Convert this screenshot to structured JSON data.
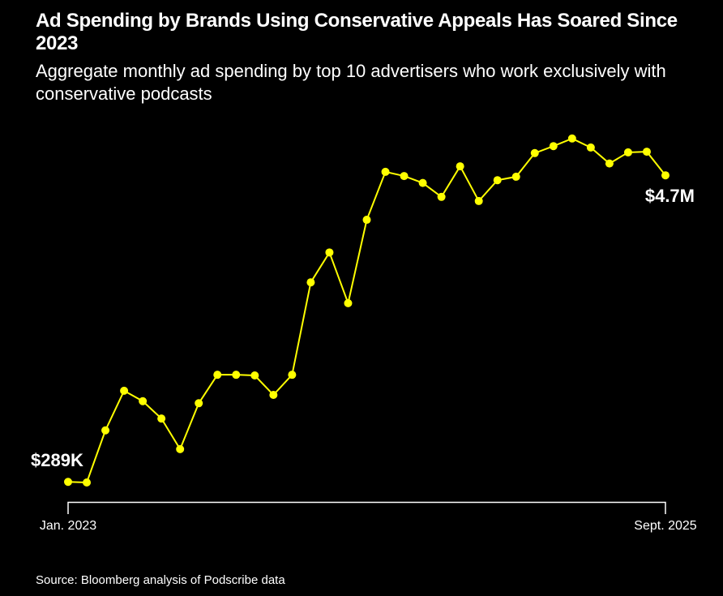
{
  "header": {
    "title": "Ad Spending by Brands Using Conservative Appeals Has Soared Since 2023",
    "subtitle": "Aggregate monthly ad spending by top 10 advertisers who work exclusively with conservative podcasts"
  },
  "footer": {
    "source": "Source: Bloomberg analysis of Podscribe data"
  },
  "chart_data": {
    "type": "line",
    "title": "Ad Spending by Brands Using Conservative Appeals Has Soared Since 2023",
    "subtitle": "Aggregate monthly ad spending by top 10 advertisers who work exclusively with conservative podcasts",
    "xlabel": "",
    "ylabel": "",
    "unit": "$M",
    "x_start": "Jan. 2023",
    "x_end": "Sept. 2025",
    "x_tick_labels": [
      "Jan. 2023",
      "Sept. 2025"
    ],
    "ylim": [
      0,
      5.5
    ],
    "grid": false,
    "line_color": "#ffff00",
    "markers": true,
    "annotations": {
      "first": "$289K",
      "last": "$4.7M"
    },
    "values": [
      0.289,
      0.28,
      1.03,
      1.6,
      1.45,
      1.2,
      0.76,
      1.42,
      1.83,
      1.83,
      1.82,
      1.54,
      1.83,
      3.16,
      3.59,
      2.86,
      4.06,
      4.75,
      4.69,
      4.59,
      4.39,
      4.83,
      4.33,
      4.63,
      4.68,
      5.02,
      5.12,
      5.23,
      5.1,
      4.87,
      5.03,
      5.04,
      4.7
    ]
  }
}
